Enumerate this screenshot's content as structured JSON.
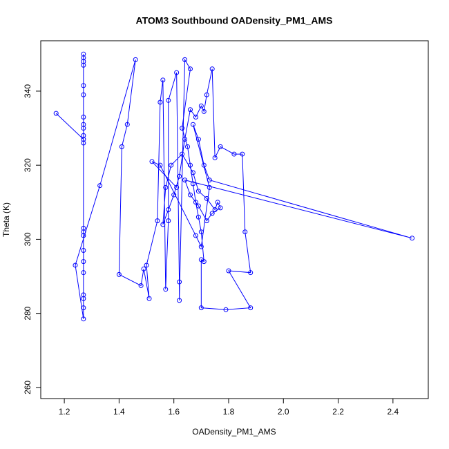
{
  "chart_data": {
    "type": "line",
    "markers": true,
    "title": "ATOM3 Southbound OADensity_PM1_AMS",
    "x_label": "OADensity_PM1_AMS",
    "y_label": "Theta (K)",
    "xlim": [
      1.114,
      2.529
    ],
    "ylim": [
      257.0,
      353.6
    ],
    "xticks": [
      1.2,
      1.4,
      1.6,
      1.8,
      {
        "value": 2,
        "label": "2.0"
      },
      2.2,
      2.4
    ],
    "yticks": [
      260,
      280,
      300,
      320,
      340
    ],
    "x": [
      1.17,
      1.27,
      1.27,
      1.27,
      1.27,
      1.27,
      1.27,
      1.27,
      1.27,
      1.27,
      1.27,
      1.27,
      1.27,
      1.27,
      1.27,
      1.27,
      1.27,
      1.27,
      1.27,
      1.27,
      1.27,
      1.27,
      1.27,
      1.24,
      1.33,
      1.46,
      1.43,
      1.41,
      1.4,
      1.48,
      1.49,
      1.51,
      1.5,
      1.54,
      1.55,
      1.56,
      1.57,
      1.58,
      1.58,
      1.61,
      1.62,
      1.62,
      1.64,
      1.66,
      1.63,
      1.65,
      1.66,
      1.67,
      1.68,
      1.69,
      1.7,
      1.71,
      1.7,
      1.7,
      1.79,
      1.88,
      1.8,
      1.88,
      1.86,
      1.85,
      1.82,
      1.77,
      1.75,
      1.74,
      1.72,
      1.71,
      1.7,
      1.68,
      1.66,
      1.64,
      1.62,
      1.6,
      1.58,
      1.56,
      1.57,
      1.59,
      1.63,
      1.67,
      1.69,
      1.72,
      1.75,
      1.76,
      1.77,
      1.74,
      1.72,
      1.69,
      1.66,
      1.64,
      2.47,
      1.73,
      1.71,
      1.69,
      1.67,
      1.73,
      1.7,
      1.68,
      1.55,
      1.52,
      1.61
    ],
    "series": [
      {
        "name": "Theta (K)",
        "color": "#0000ff",
        "values": [
          334,
          327,
          350,
          348,
          349,
          347,
          341.5,
          339,
          333,
          331,
          330,
          328,
          326,
          303,
          302,
          301,
          297,
          294,
          291,
          285,
          284,
          281.5,
          278.5,
          293,
          314.5,
          348.5,
          331,
          325,
          290.5,
          287.5,
          292,
          284,
          293,
          305,
          337,
          343,
          286.5,
          305,
          337.5,
          345,
          288.5,
          283.5,
          348.5,
          346,
          330,
          325,
          320,
          315,
          310,
          306,
          302,
          294,
          294.5,
          281.5,
          281,
          281.5,
          291.5,
          291,
          302,
          323,
          323,
          325,
          322,
          346,
          339,
          334.5,
          336,
          333,
          335,
          327,
          317,
          312,
          308,
          304,
          314,
          320,
          323,
          318,
          313,
          311,
          308,
          310,
          308.5,
          307,
          305,
          309,
          312,
          316,
          300.3,
          316,
          320,
          327,
          331,
          314,
          298,
          301,
          320,
          321,
          314
        ]
      }
    ]
  }
}
